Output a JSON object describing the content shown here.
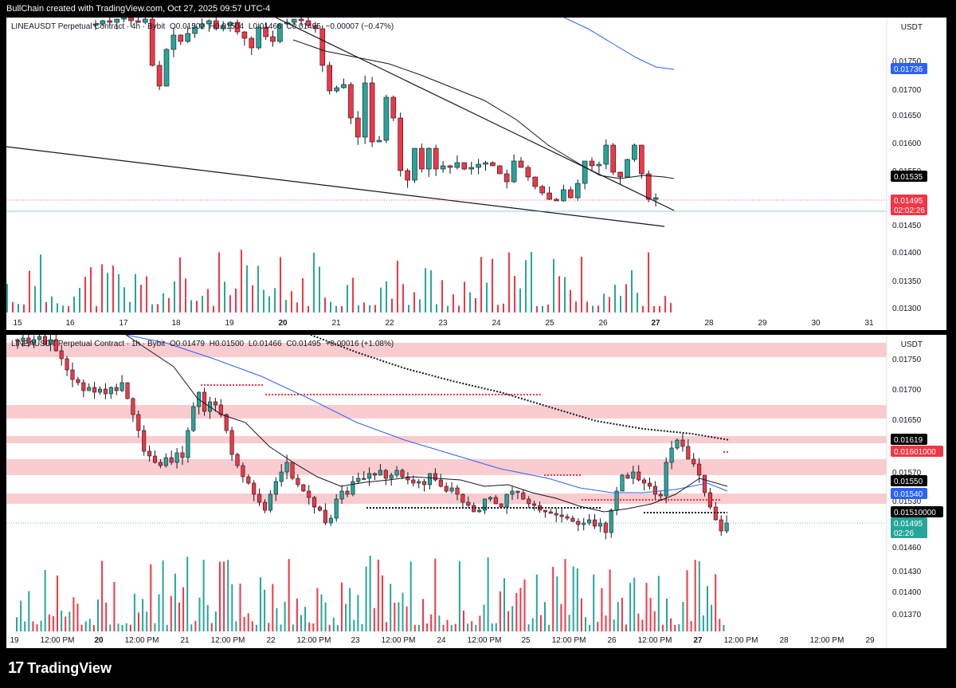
{
  "header": {
    "credit": "BullChain created with TradingView.com, Oct 27, 2025 09:57 UTC-4"
  },
  "top_chart": {
    "legend": {
      "symbol": "LINEAUSDT Perpetual Contract · 4h · Bybit",
      "open": "O0.01502",
      "high": "H0.01504",
      "low": "L0.01466",
      "close": "C0.01495",
      "change": "−0.00007 (−0.47%)"
    },
    "currency": "USDT",
    "y_axis_labels": [
      "0.01750",
      "0.01700",
      "0.01650",
      "0.01600",
      "0.01550",
      "0.01450",
      "0.01400",
      "0.01350",
      "0.01300"
    ],
    "x_axis_labels": [
      "15",
      "16",
      "17",
      "18",
      "19",
      "20",
      "21",
      "22",
      "23",
      "24",
      "25",
      "26",
      "27",
      "28",
      "29",
      "30",
      "31"
    ],
    "price_badges": [
      {
        "value": "0.01736",
        "color": "#2962ff"
      },
      {
        "value": "0.01535",
        "color": "#000000"
      },
      {
        "value": "0.01495",
        "sub": "02:02:26",
        "color": "#f23645"
      }
    ]
  },
  "bottom_chart": {
    "legend": {
      "symbol": "LINEAUSDT Perpetual Contract · 1h · Bybit",
      "open": "O0.01479",
      "high": "H0.01500",
      "low": "L0.01466",
      "close": "C0.01495",
      "change": "+0.00016 (+1.08%)"
    },
    "currency": "USDT",
    "y_axis_labels": [
      "0.01750",
      "0.01700",
      "0.01650",
      "0.01570",
      "0.01530",
      "0.01460",
      "0.01430",
      "0.01400",
      "0.01370"
    ],
    "x_axis_labels": [
      "19",
      "12:00 PM",
      "20",
      "12:00 PM",
      "21",
      "12:00 PM",
      "22",
      "12:00 PM",
      "23",
      "12:00 PM",
      "24",
      "12:00 PM",
      "25",
      "12:00 PM",
      "26",
      "12:00 PM",
      "27",
      "12:00 PM",
      "28",
      "12:00 PM",
      "29"
    ],
    "price_badges": [
      {
        "value": "0.01619",
        "color": "#000000"
      },
      {
        "value": "0.01601000",
        "color": "#f23645"
      },
      {
        "value": "0.01550",
        "color": "#000000"
      },
      {
        "value": "0.01540",
        "color": "#2962ff"
      },
      {
        "value": "0.01510000",
        "color": "#000000"
      },
      {
        "value": "0.01495",
        "sub": "02:26",
        "color": "#26a69a"
      }
    ]
  },
  "footer": {
    "brand": "TradingView"
  },
  "colors": {
    "up": "#26a69a",
    "down": "#f23645",
    "ma_blue": "#2962ff",
    "zone": "#f7b6bb"
  }
}
